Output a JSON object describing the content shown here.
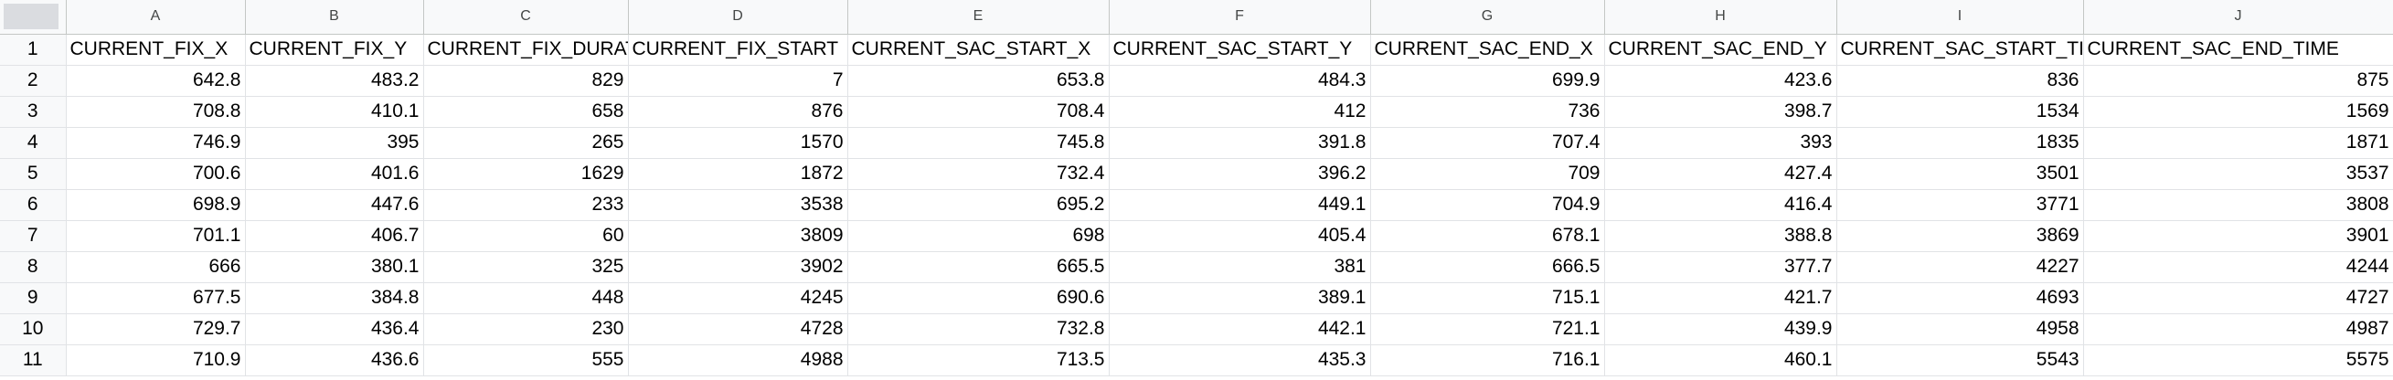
{
  "sheet": {
    "columns": [
      "A",
      "B",
      "C",
      "D",
      "E",
      "F",
      "G",
      "H",
      "I",
      "J"
    ],
    "row_numbers": [
      "1",
      "2",
      "3",
      "4",
      "5",
      "6",
      "7",
      "8",
      "9",
      "10",
      "11"
    ],
    "header": [
      "CURRENT_FIX_X",
      "CURRENT_FIX_Y",
      "CURRENT_FIX_DURATION",
      "CURRENT_FIX_START",
      "CURRENT_SAC_START_X",
      "CURRENT_SAC_START_Y",
      "CURRENT_SAC_END_X",
      "CURRENT_SAC_END_Y",
      "CURRENT_SAC_START_TIME",
      "CURRENT_SAC_END_TIME"
    ],
    "rows": [
      [
        "642.8",
        "483.2",
        "829",
        "7",
        "653.8",
        "484.3",
        "699.9",
        "423.6",
        "836",
        "875"
      ],
      [
        "708.8",
        "410.1",
        "658",
        "876",
        "708.4",
        "412",
        "736",
        "398.7",
        "1534",
        "1569"
      ],
      [
        "746.9",
        "395",
        "265",
        "1570",
        "745.8",
        "391.8",
        "707.4",
        "393",
        "1835",
        "1871"
      ],
      [
        "700.6",
        "401.6",
        "1629",
        "1872",
        "732.4",
        "396.2",
        "709",
        "427.4",
        "3501",
        "3537"
      ],
      [
        "698.9",
        "447.6",
        "233",
        "3538",
        "695.2",
        "449.1",
        "704.9",
        "416.4",
        "3771",
        "3808"
      ],
      [
        "701.1",
        "406.7",
        "60",
        "3809",
        "698",
        "405.4",
        "678.1",
        "388.8",
        "3869",
        "3901"
      ],
      [
        "666",
        "380.1",
        "325",
        "3902",
        "665.5",
        "381",
        "666.5",
        "377.7",
        "4227",
        "4244"
      ],
      [
        "677.5",
        "384.8",
        "448",
        "4245",
        "690.6",
        "389.1",
        "715.1",
        "421.7",
        "4693",
        "4727"
      ],
      [
        "729.7",
        "436.4",
        "230",
        "4728",
        "732.8",
        "442.1",
        "721.1",
        "439.9",
        "4958",
        "4987"
      ],
      [
        "710.9",
        "436.6",
        "555",
        "4988",
        "713.5",
        "435.3",
        "716.1",
        "460.1",
        "5543",
        "5575"
      ]
    ]
  }
}
